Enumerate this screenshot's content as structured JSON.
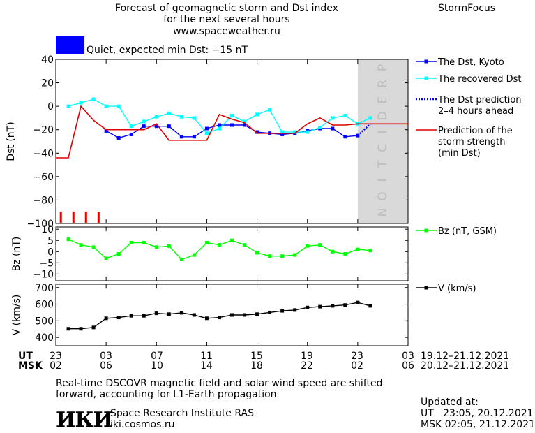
{
  "header": {
    "title_line1": "Forecast of geomagnetic storm and Dst index",
    "title_line2": "for the next several hours",
    "website": "www.spaceweather.ru",
    "brand": "StormFocus"
  },
  "status": {
    "color": "#0000ff",
    "label": "Quiet, expected min Dst: −15 nT"
  },
  "time_axis": {
    "ut_label": "UT",
    "msk_label": "MSK",
    "ut_ticks": [
      "23",
      "03",
      "07",
      "11",
      "15",
      "19",
      "23",
      "03"
    ],
    "msk_ticks": [
      "02",
      "06",
      "10",
      "14",
      "18",
      "22",
      "02",
      "06"
    ],
    "ut_range": "19.12–21.12.2021",
    "msk_range": "20.12–21.12.2021"
  },
  "footer": {
    "note_line1": "Real-time DSCOVR magnetic field and solar wind speed are shifted",
    "note_line2": "forward, accounting for L1-Earth propagation",
    "logo_text": "ИКИ",
    "org_name": "Space Research Institute RAS",
    "org_site": "iki.cosmos.ru",
    "updated_label": "Updated at:",
    "updated_ut": "UT   23:05, 20.12.2021",
    "updated_msk": "MSK 02:05, 21.12.2021"
  },
  "chart_data": [
    {
      "type": "line",
      "ylabel": "Dst (nT)",
      "ylim": [
        -100,
        40
      ],
      "yticks": [
        40,
        20,
        0,
        -20,
        -40,
        -60,
        -80,
        -100
      ],
      "xlim": [
        -1,
        27
      ],
      "prediction_region": {
        "from": 23,
        "to": 27,
        "label": "PREDICTION",
        "color": "#d9d9d9"
      },
      "ticks_bottom_marks": [
        -0.6,
        0.4,
        1.4,
        2.4
      ],
      "series": [
        {
          "name": "The Dst, Kyoto",
          "color": "#0000ff",
          "marker": "square",
          "x": [
            3,
            4,
            5,
            6,
            7,
            8,
            9,
            10,
            11,
            12,
            13,
            14,
            15,
            16,
            17,
            18,
            19,
            20,
            21,
            22,
            23
          ],
          "y": [
            -21,
            -27,
            -24,
            -17,
            -17,
            -17,
            -26,
            -26,
            -19,
            -16,
            -16,
            -16,
            -22,
            -23,
            -24,
            -23,
            -21,
            -19,
            -19,
            -26,
            -25
          ]
        },
        {
          "name": "The recovered Dst",
          "color": "#00ffff",
          "marker": "square",
          "x": [
            0,
            1,
            2,
            3,
            4,
            5,
            6,
            7,
            8,
            9,
            10,
            11,
            12,
            13,
            14,
            15,
            16,
            17,
            18,
            19,
            20,
            21,
            22,
            23,
            24
          ],
          "y": [
            0,
            3,
            6,
            0,
            0,
            -17,
            -13,
            -9,
            -6,
            -9,
            -10,
            -23,
            -19,
            -8,
            -13,
            -7,
            -3,
            -22,
            -22,
            -22,
            -18,
            -10,
            -8,
            -15,
            -10
          ]
        },
        {
          "name": "The Dst prediction\n2–4 hours ahead",
          "color": "#0000ff",
          "dotted": true,
          "x": [
            23,
            24
          ],
          "y": [
            -25,
            -15
          ]
        },
        {
          "name": "Prediction of the\nstorm strength\n(min Dst)",
          "color": "#e00000",
          "step": true,
          "x": [
            -1,
            0,
            1,
            2,
            3,
            4,
            5,
            6,
            7,
            8,
            9,
            10,
            11,
            12,
            13,
            14,
            15,
            16,
            17,
            18,
            19,
            20,
            21,
            22,
            23,
            24,
            27
          ],
          "y": [
            -44,
            -44,
            0,
            -12,
            -20,
            -20,
            -20,
            -20,
            -15,
            -29,
            -29,
            -29,
            -29,
            -7,
            -11,
            -14,
            -23,
            -23,
            -23,
            -23,
            -15,
            -10,
            -16,
            -16,
            -15,
            -15,
            -15
          ]
        }
      ]
    },
    {
      "type": "line",
      "ylabel": "Bz (nT)",
      "ylim": [
        -13,
        11
      ],
      "yticks": [
        10,
        5,
        0,
        -5,
        -10
      ],
      "xlim": [
        -1,
        27
      ],
      "series": [
        {
          "name": "Bz (nT, GSM)",
          "color": "#00ff00",
          "marker": "square",
          "x": [
            0,
            1,
            2,
            3,
            4,
            5,
            6,
            7,
            8,
            9,
            10,
            11,
            12,
            13,
            14,
            15,
            16,
            17,
            18,
            19,
            20,
            21,
            22,
            23,
            24
          ],
          "y": [
            5.5,
            3,
            2,
            -3,
            -1,
            4,
            4,
            2,
            2.5,
            -3.5,
            -1.5,
            4,
            3,
            5,
            3,
            -0.5,
            -2,
            -2,
            -1.5,
            2.5,
            3,
            0,
            -1,
            1,
            0.5
          ]
        }
      ]
    },
    {
      "type": "line",
      "ylabel": "V (km/s)",
      "ylim": [
        350,
        720
      ],
      "yticks": [
        700,
        600,
        500,
        400
      ],
      "xlim": [
        -1,
        27
      ],
      "series": [
        {
          "name": "V (km/s)",
          "color": "#000000",
          "marker": "square",
          "x": [
            0,
            1,
            2,
            3,
            4,
            5,
            6,
            7,
            8,
            9,
            10,
            11,
            12,
            13,
            14,
            15,
            16,
            17,
            18,
            19,
            20,
            21,
            22,
            23,
            24
          ],
          "y": [
            452,
            452,
            460,
            515,
            520,
            530,
            530,
            545,
            540,
            548,
            535,
            515,
            520,
            535,
            535,
            540,
            550,
            560,
            565,
            580,
            585,
            590,
            595,
            610,
            590
          ]
        }
      ]
    }
  ]
}
